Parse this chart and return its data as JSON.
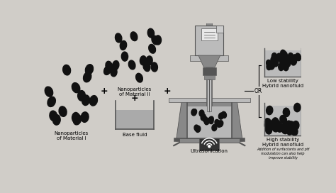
{
  "bg_color": "#d0cdc8",
  "fig_width": 4.74,
  "fig_height": 2.72,
  "dpi": 100,
  "labels": {
    "mat1": "Nanoparticles\nof Material I",
    "mat2": "Nanoparticles\nof Material II",
    "base": "Base fluid",
    "ultra": "Ultrasonication",
    "low_stab": "Low stability\nHybrid nanofluid",
    "high_stab": "High stability\nHybrid nanofluid",
    "or_text": "OR",
    "add_text": "Addition of surfactants and pH\nmodulation can also help\nimprove stability"
  },
  "particle_color": "#111111",
  "dark_gray": "#555555",
  "mid_gray": "#888888",
  "light_gray": "#bbbbbb",
  "very_light_gray": "#cccccc",
  "white_ish": "#e8e8e8",
  "fluid_color": "#aaaaaa",
  "font_size_label": 5.0,
  "font_size_small": 4.0,
  "font_size_or": 5.5,
  "font_size_plus": 9
}
